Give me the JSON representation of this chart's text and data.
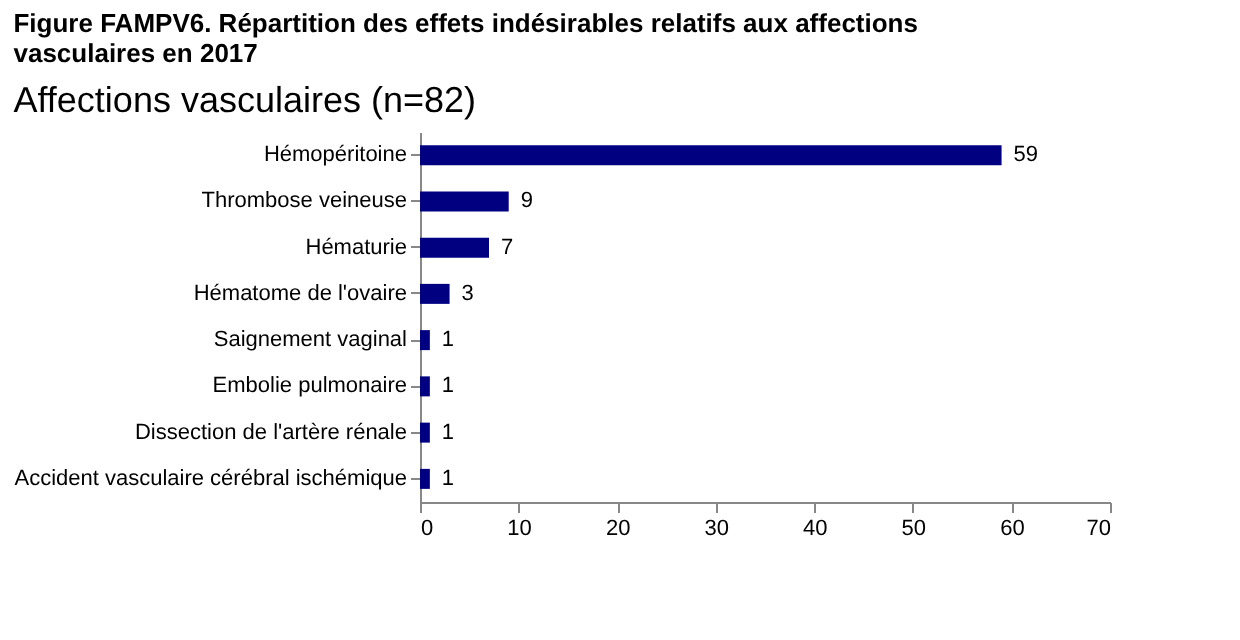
{
  "chart_data": {
    "type": "bar",
    "orientation": "horizontal",
    "title": "Figure FAMPV6. Répartition des effets indésirables relatifs aux affections vasculaires en 2017",
    "subtitle": "Affections vasculaires (n=82)",
    "categories": [
      "Hémopéritoine",
      "Thrombose veineuse",
      "Hématurie",
      "Hématome de l'ovaire",
      "Saignement vaginal",
      "Embolie pulmonaire",
      "Dissection de l'artère rénale",
      "Accident vasculaire cérébral ischémique"
    ],
    "values": [
      59,
      9,
      7,
      3,
      1,
      1,
      1,
      1
    ],
    "color": "#000080",
    "xlim": [
      0,
      70
    ],
    "xticks": [
      0,
      10,
      20,
      30,
      40,
      50,
      60,
      70
    ],
    "grid": false,
    "data_labels": true
  }
}
